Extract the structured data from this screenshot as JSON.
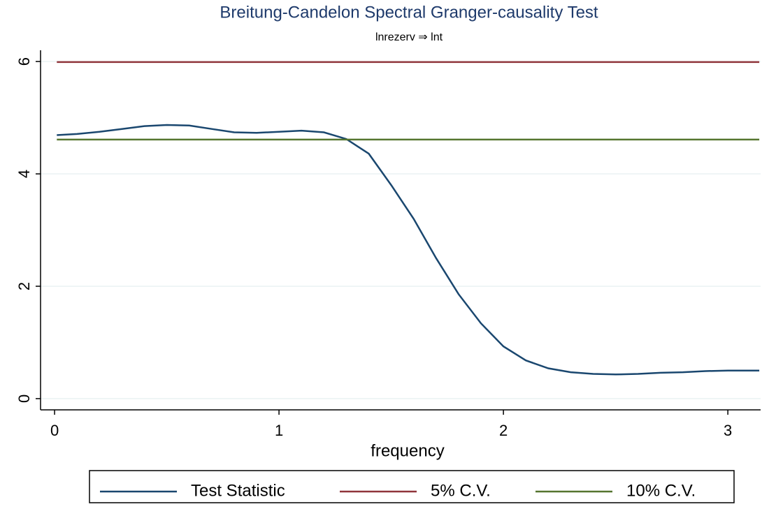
{
  "chart_data": {
    "type": "line",
    "title": "Breitung-Candelon Spectral Granger-causality Test",
    "subtitle": "lnrezerv ⇒ lnt",
    "x_label": "frequency",
    "xlim": [
      -0.0625,
      3.146
    ],
    "xticks": [
      0,
      1,
      2,
      3
    ],
    "ylim": [
      -0.2,
      6.2
    ],
    "yticks": [
      0,
      2,
      4,
      6
    ],
    "grid": true,
    "series": [
      {
        "name": "Test Statistic",
        "color": "#1a476f",
        "x": [
          0.01,
          0.1,
          0.2,
          0.3,
          0.4,
          0.5,
          0.6,
          0.7,
          0.8,
          0.9,
          1.0,
          1.1,
          1.2,
          1.3,
          1.4,
          1.5,
          1.6,
          1.7,
          1.8,
          1.9,
          2.0,
          2.1,
          2.2,
          2.3,
          2.4,
          2.5,
          2.6,
          2.7,
          2.8,
          2.9,
          3.0,
          3.14
        ],
        "values": [
          4.69,
          4.71,
          4.75,
          4.8,
          4.85,
          4.87,
          4.86,
          4.8,
          4.74,
          4.73,
          4.75,
          4.77,
          4.74,
          4.62,
          4.36,
          3.8,
          3.2,
          2.5,
          1.86,
          1.34,
          0.93,
          0.68,
          0.54,
          0.47,
          0.44,
          0.43,
          0.44,
          0.46,
          0.47,
          0.49,
          0.5,
          0.5
        ]
      },
      {
        "name": "5% C.V.",
        "color": "#90353b",
        "x": [
          0.01,
          3.14
        ],
        "values": [
          5.99,
          5.99
        ]
      },
      {
        "name": "10% C.V.",
        "color": "#55752f",
        "x": [
          0.01,
          3.14
        ],
        "values": [
          4.61,
          4.61
        ]
      }
    ]
  }
}
